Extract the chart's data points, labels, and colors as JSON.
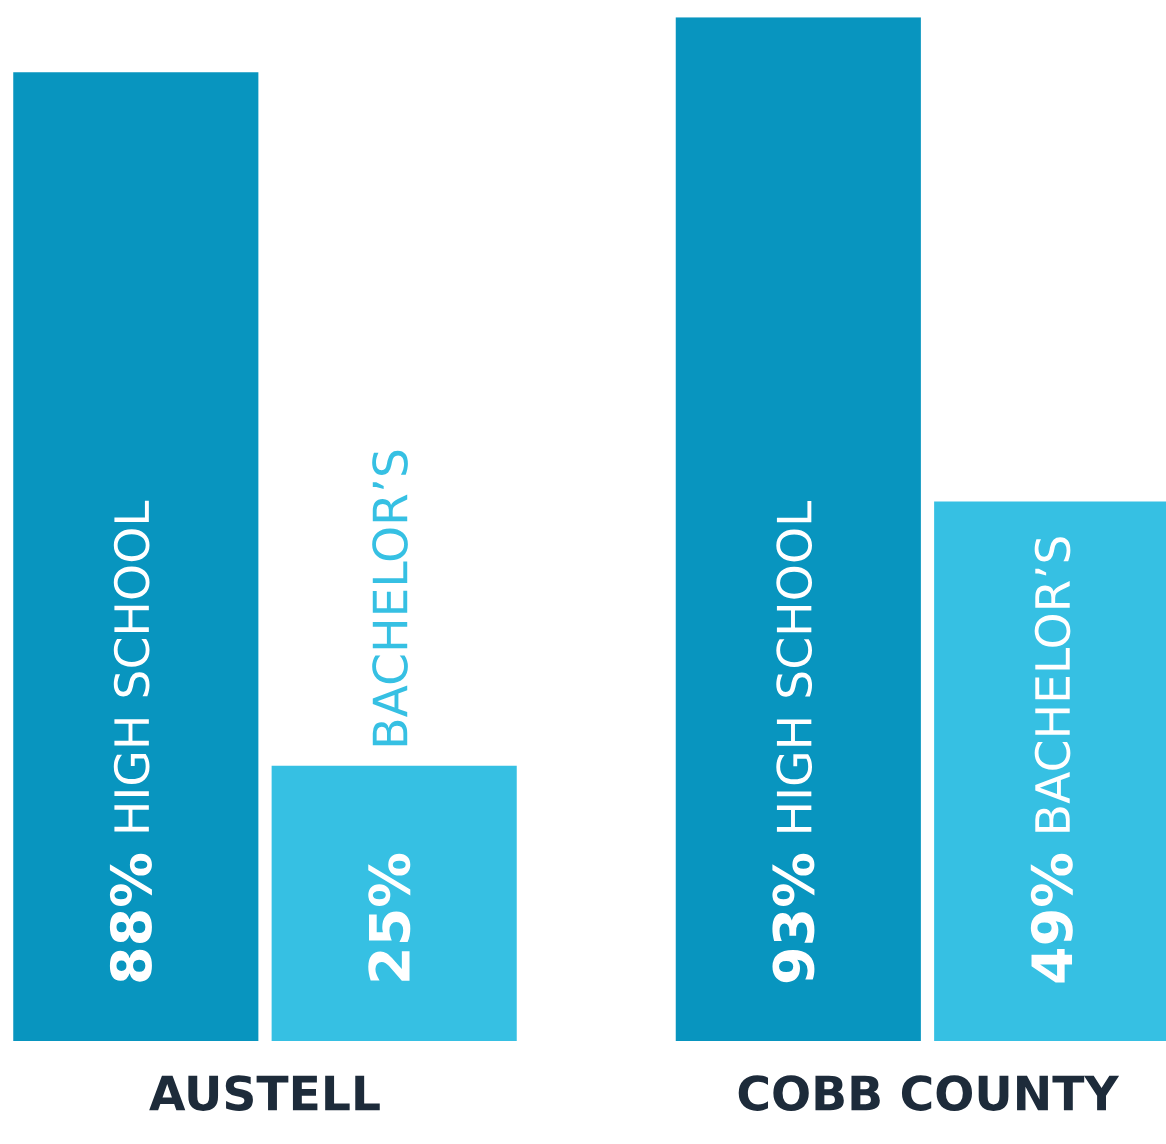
{
  "chart_data": {
    "type": "bar",
    "categories": [
      "AUSTELL",
      "COBB COUNTY"
    ],
    "series": [
      {
        "name": "HIGH SCHOOL",
        "color": "#0895bf",
        "values": [
          88,
          93
        ],
        "value_labels": [
          "88%",
          "93%"
        ]
      },
      {
        "name": "BACHELOR’S",
        "color": "#36c0e3",
        "values": [
          25,
          49
        ],
        "value_labels": [
          "25%",
          "49%"
        ]
      }
    ],
    "grid": false,
    "legend": false
  }
}
